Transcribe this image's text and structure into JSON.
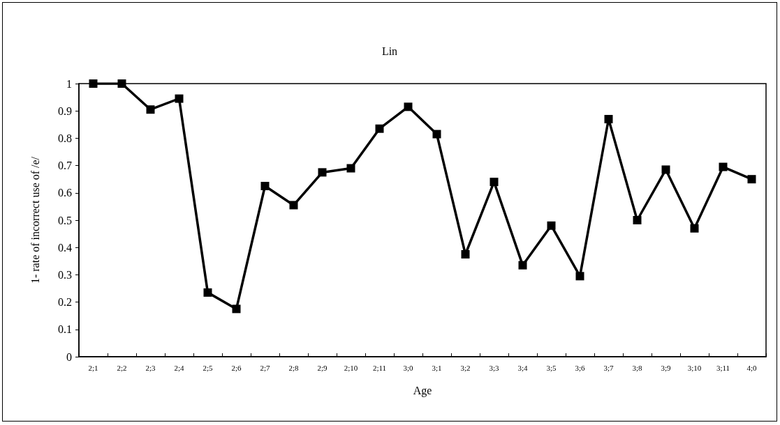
{
  "chart_data": {
    "type": "line",
    "title": "Lin",
    "xlabel": "Age",
    "ylabel": "1- rate of incorrect use of /e/",
    "categories": [
      "2;1",
      "2;2",
      "2;3",
      "2;4",
      "2;5",
      "2;6",
      "2;7",
      "2;8",
      "2;9",
      "2;10",
      "2;11",
      "3;0",
      "3;1",
      "3;2",
      "3;3",
      "3;4",
      "3;5",
      "3;6",
      "3;7",
      "3;8",
      "3;9",
      "3;10",
      "3;11",
      "4;0"
    ],
    "series": [
      {
        "color": "#000000",
        "values": [
          1,
          1,
          0.905,
          0.945,
          0.235,
          0.175,
          0.625,
          0.555,
          0.675,
          0.69,
          0.835,
          0.915,
          0.815,
          0.375,
          0.64,
          0.335,
          0.48,
          0.295,
          0.87,
          0.5,
          0.685,
          0.47,
          0.695,
          0.65
        ]
      }
    ],
    "ylim": [
      0,
      1
    ],
    "yticks": [
      0,
      0.1,
      0.2,
      0.3,
      0.4,
      0.5,
      0.6,
      0.7,
      0.8,
      0.9,
      1
    ],
    "grid": false,
    "marker": "square",
    "line_style": "solid"
  }
}
